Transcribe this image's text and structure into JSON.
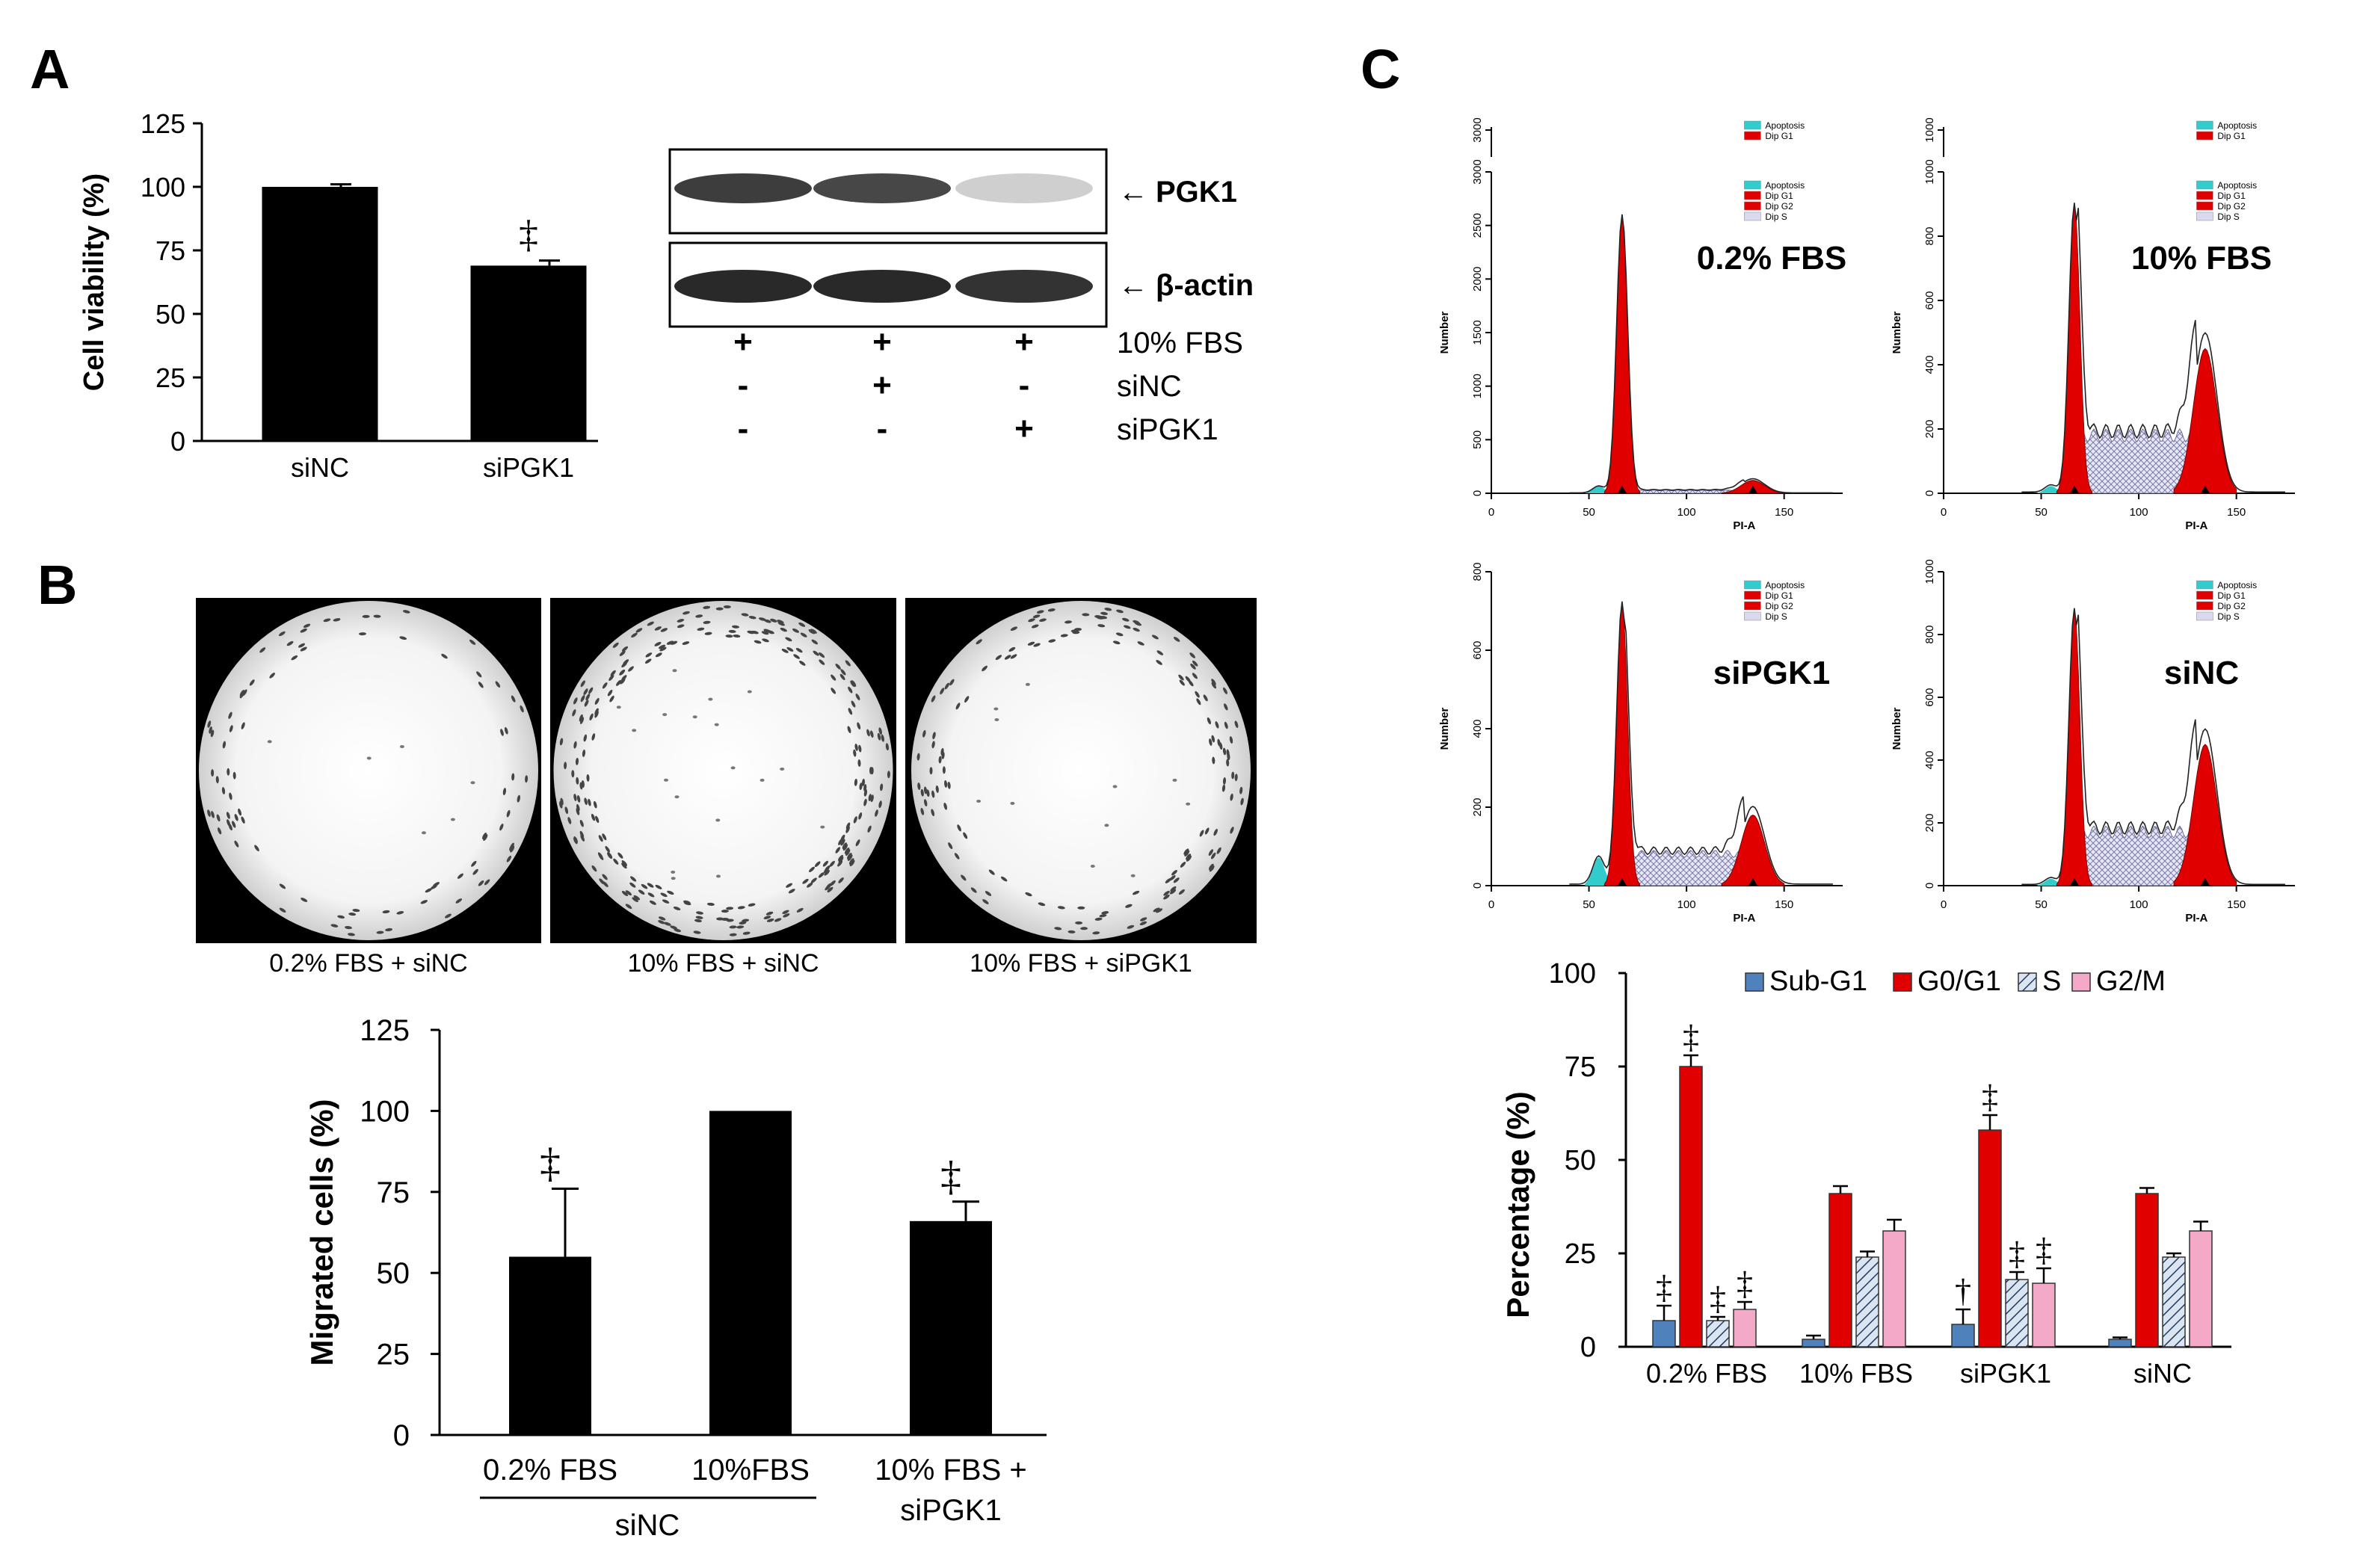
{
  "panel_labels": [
    "A",
    "B",
    "C"
  ],
  "colors": {
    "bar_black": "#000000",
    "sub_g1": "#4f81bd",
    "g0g1": "#e00000",
    "s_fill": "#b8cce4",
    "g2m": "#f5a9c8",
    "apoptosis": "#33cccc",
    "dip_red": "#e00000",
    "dip_s": "#d9d9f0"
  },
  "chart_data": [
    {
      "id": "A_viability",
      "type": "bar",
      "ylabel": "Cell viability (%)",
      "ylim": [
        0,
        125
      ],
      "yticks": [
        0,
        25,
        50,
        75,
        100,
        125
      ],
      "categories": [
        "siNC",
        "siPGK1"
      ],
      "values": [
        100,
        69
      ],
      "errors": [
        1,
        2
      ],
      "significance": [
        "",
        "‡"
      ]
    },
    {
      "id": "A_western",
      "type": "table",
      "bands": [
        "PGK1",
        "β-actin"
      ],
      "band_intensity": [
        [
          0.9,
          0.85,
          0.15
        ],
        [
          1.0,
          1.0,
          0.95
        ]
      ],
      "row_labels": [
        "10% FBS",
        "siNC",
        "siPGK1"
      ],
      "row_values": [
        [
          "+",
          "+",
          "+"
        ],
        [
          "-",
          "+",
          "-"
        ],
        [
          "-",
          "-",
          "+"
        ]
      ]
    },
    {
      "id": "B_migration",
      "type": "bar",
      "ylabel": "Migrated cells (%)",
      "ylim": [
        0,
        125
      ],
      "yticks": [
        0,
        25,
        50,
        75,
        100,
        125
      ],
      "categories": [
        "0.2% FBS",
        "10%FBS",
        "10% FBS + siPGK1"
      ],
      "values": [
        55,
        100,
        66
      ],
      "errors": [
        21,
        0,
        6
      ],
      "significance": [
        "‡",
        "",
        "‡"
      ],
      "image_captions": [
        "0.2% FBS + siNC",
        "10% FBS + siNC",
        "10% FBS + siPGK1"
      ],
      "group_label": "siNC",
      "third_label_lines": [
        "10% FBS +",
        "siPGK1"
      ]
    },
    {
      "id": "C_histograms",
      "type": "area",
      "xlabel": "PI-A",
      "ylabel": "Number",
      "xticks": [
        0,
        50,
        100,
        150
      ],
      "plots": [
        {
          "title": "0.2% FBS",
          "yticks": [
            0,
            500,
            1000,
            1500,
            2000,
            2500,
            3000
          ],
          "small_ticks": [
            3000
          ],
          "g1_peak": 2600,
          "s_level": 30,
          "g2_peak": 120
        },
        {
          "title": "10% FBS",
          "yticks": [
            0,
            200,
            400,
            600,
            800,
            1000
          ],
          "small_ticks": [
            1000
          ],
          "g1_peak": 900,
          "s_level": 200,
          "g2_peak": 450
        },
        {
          "title": "siPGK1",
          "yticks": [
            0,
            200,
            400,
            600,
            800
          ],
          "small_ticks": [],
          "g1_peak": 720,
          "s_level": 90,
          "g2_peak": 180
        },
        {
          "title": "siNC",
          "yticks": [
            0,
            200,
            400,
            600,
            800,
            1000
          ],
          "small_ticks": [],
          "g1_peak": 880,
          "s_level": 190,
          "g2_peak": 450
        }
      ],
      "legend_small": [
        "Apoptosis",
        "Dip G1"
      ],
      "legend_full": [
        "Apoptosis",
        "Dip G1",
        "Dip G2",
        "Dip S"
      ]
    },
    {
      "id": "C_percentage",
      "type": "bar",
      "ylabel": "Percentage (%)",
      "ylim": [
        0,
        100
      ],
      "yticks": [
        0,
        25,
        50,
        75,
        100
      ],
      "categories": [
        "0.2% FBS",
        "10% FBS",
        "siPGK1",
        "siNC"
      ],
      "series": [
        {
          "name": "Sub-G1",
          "values": [
            7,
            2,
            6,
            2
          ],
          "errors": [
            4,
            1,
            4,
            0.5
          ],
          "marks": [
            "‡",
            "",
            "†",
            ""
          ]
        },
        {
          "name": "G0/G1",
          "values": [
            75,
            41,
            58,
            41
          ],
          "errors": [
            3,
            2,
            4,
            1.5
          ],
          "marks": [
            "‡",
            "",
            "‡",
            ""
          ]
        },
        {
          "name": "S",
          "values": [
            7,
            24,
            18,
            24
          ],
          "errors": [
            1,
            1.5,
            2,
            1
          ],
          "marks": [
            "‡",
            "",
            "‡",
            ""
          ]
        },
        {
          "name": "G2/M",
          "values": [
            10,
            31,
            17,
            31
          ],
          "errors": [
            2,
            3,
            4,
            2.5
          ],
          "marks": [
            "‡",
            "",
            "‡",
            ""
          ]
        }
      ]
    }
  ]
}
